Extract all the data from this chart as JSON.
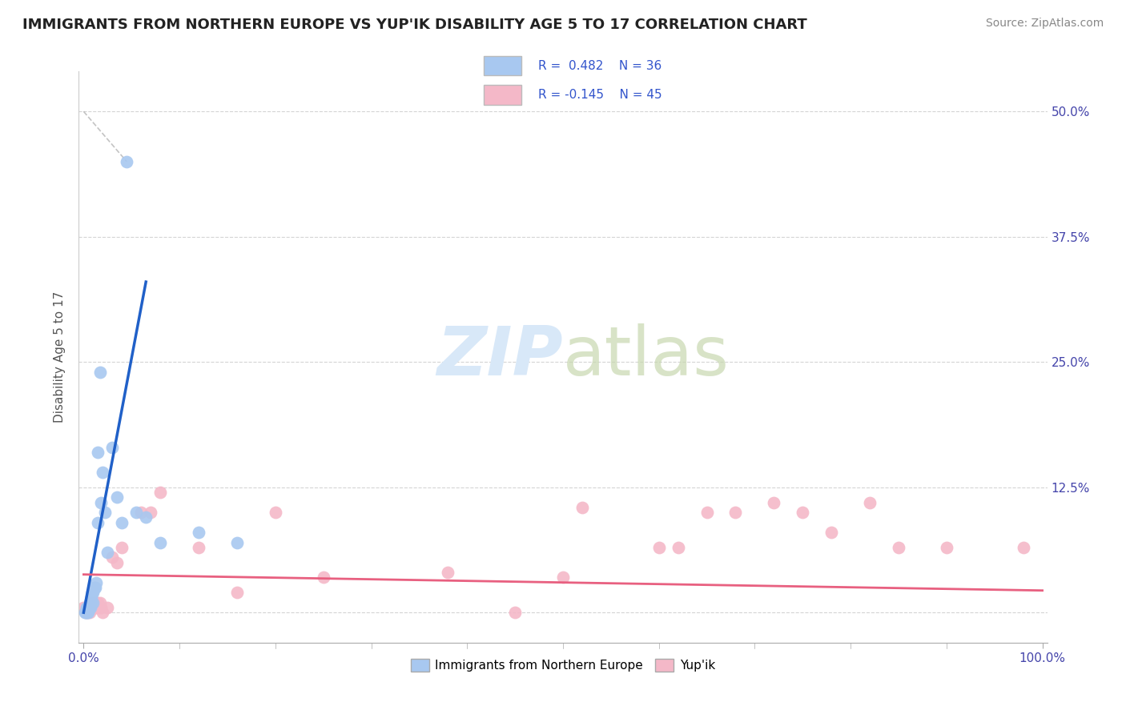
{
  "title": "IMMIGRANTS FROM NORTHERN EUROPE VS YUP'IK DISABILITY AGE 5 TO 17 CORRELATION CHART",
  "source": "Source: ZipAtlas.com",
  "ylabel": "Disability Age 5 to 17",
  "xlim": [
    -0.005,
    1.005
  ],
  "ylim": [
    -0.03,
    0.54
  ],
  "xtick_positions": [
    0.0,
    1.0
  ],
  "xtick_labels": [
    "0.0%",
    "100.0%"
  ],
  "ytick_positions": [
    0.0,
    0.125,
    0.25,
    0.375,
    0.5
  ],
  "ytick_labels": [
    "",
    "12.5%",
    "25.0%",
    "37.5%",
    "50.0%"
  ],
  "legend_labels": [
    "Immigrants from Northern Europe",
    "Yup'ik"
  ],
  "blue_R": 0.482,
  "blue_N": 36,
  "pink_R": -0.145,
  "pink_N": 45,
  "blue_color": "#a8c8f0",
  "pink_color": "#f4b8c8",
  "blue_line_color": "#2060c8",
  "pink_line_color": "#e86080",
  "watermark_color": "#d8e8f8",
  "background_color": "#ffffff",
  "grid_color": "#d0d0d0",
  "blue_scatter_x": [
    0.001,
    0.002,
    0.003,
    0.003,
    0.004,
    0.004,
    0.005,
    0.005,
    0.006,
    0.006,
    0.007,
    0.007,
    0.008,
    0.008,
    0.009,
    0.01,
    0.01,
    0.011,
    0.012,
    0.013,
    0.015,
    0.015,
    0.017,
    0.018,
    0.02,
    0.022,
    0.025,
    0.03,
    0.035,
    0.04,
    0.045,
    0.055,
    0.065,
    0.08,
    0.12,
    0.16
  ],
  "blue_scatter_y": [
    0.0,
    0.0,
    0.0,
    0.005,
    0.0,
    0.005,
    0.0,
    0.005,
    0.005,
    0.01,
    0.005,
    0.01,
    0.01,
    0.015,
    0.02,
    0.01,
    0.02,
    0.025,
    0.025,
    0.03,
    0.16,
    0.09,
    0.24,
    0.11,
    0.14,
    0.1,
    0.06,
    0.165,
    0.115,
    0.09,
    0.45,
    0.1,
    0.095,
    0.07,
    0.08,
    0.07
  ],
  "pink_scatter_x": [
    0.0,
    0.002,
    0.003,
    0.004,
    0.005,
    0.006,
    0.007,
    0.008,
    0.009,
    0.01,
    0.011,
    0.012,
    0.013,
    0.014,
    0.015,
    0.016,
    0.017,
    0.018,
    0.02,
    0.025,
    0.03,
    0.035,
    0.04,
    0.06,
    0.07,
    0.08,
    0.12,
    0.16,
    0.2,
    0.25,
    0.38,
    0.45,
    0.5,
    0.52,
    0.6,
    0.62,
    0.65,
    0.68,
    0.72,
    0.75,
    0.78,
    0.82,
    0.85,
    0.9,
    0.98
  ],
  "pink_scatter_y": [
    0.005,
    0.0,
    0.005,
    0.0,
    0.005,
    0.0,
    0.005,
    0.005,
    0.01,
    0.005,
    0.01,
    0.005,
    0.01,
    0.005,
    0.01,
    0.005,
    0.01,
    0.005,
    0.0,
    0.005,
    0.055,
    0.05,
    0.065,
    0.1,
    0.1,
    0.12,
    0.065,
    0.02,
    0.1,
    0.035,
    0.04,
    0.0,
    0.035,
    0.105,
    0.065,
    0.065,
    0.1,
    0.1,
    0.11,
    0.1,
    0.08,
    0.11,
    0.065,
    0.065,
    0.065
  ],
  "title_fontsize": 13,
  "axis_label_fontsize": 11,
  "tick_fontsize": 11,
  "source_fontsize": 10
}
